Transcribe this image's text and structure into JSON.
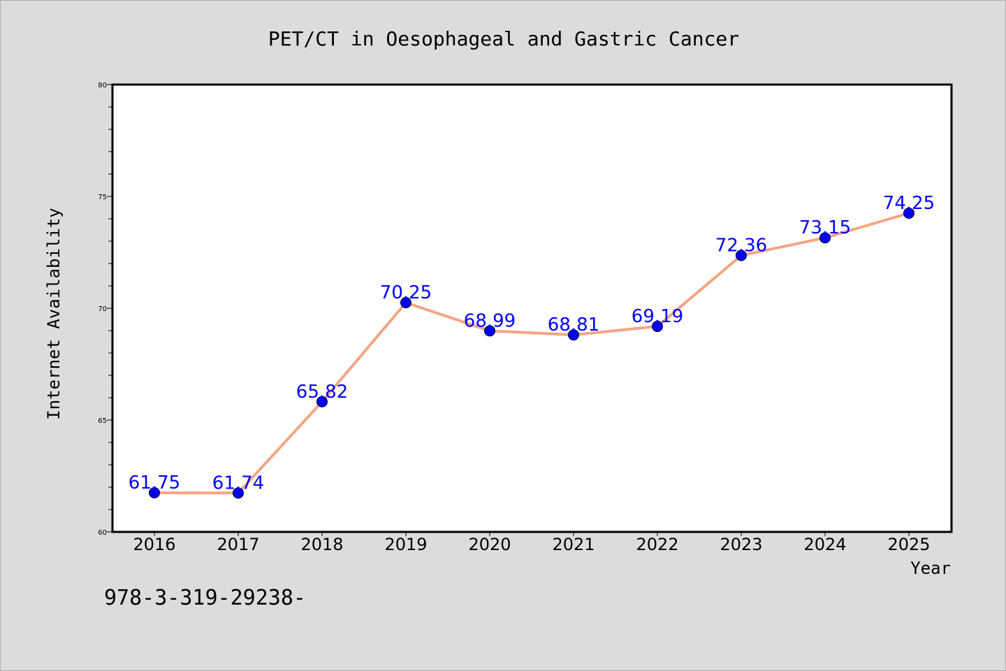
{
  "chart_data": {
    "type": "line",
    "title": "PET/CT in Oesophageal and Gastric Cancer",
    "xlabel": "Year",
    "ylabel": "Internet Availability",
    "categories": [
      "2016",
      "2017",
      "2018",
      "2019",
      "2020",
      "2021",
      "2022",
      "2023",
      "2024",
      "2025"
    ],
    "values": [
      61.75,
      61.74,
      65.82,
      70.25,
      68.99,
      68.81,
      69.19,
      72.36,
      73.15,
      74.25
    ],
    "value_labels": [
      "61.75",
      "61.74",
      "65.82",
      "70.25",
      "68.99",
      "68.81",
      "69.19",
      "72.36",
      "73.15",
      "74.25"
    ],
    "ylim": [
      60,
      80
    ],
    "yticks": [
      60,
      65,
      70,
      75,
      80
    ],
    "ytick_labels": [
      "60",
      "65",
      "70",
      "75",
      "80"
    ],
    "grid": false,
    "legend": "none",
    "colors": {
      "line": "#f4a582",
      "marker": "#0000ee",
      "data_label": "#0000ff",
      "plot_background": "#ffffff",
      "figure_background": "#dcdcdc",
      "axis": "#000000"
    }
  },
  "watermark_text": "978-3-319-29238-"
}
